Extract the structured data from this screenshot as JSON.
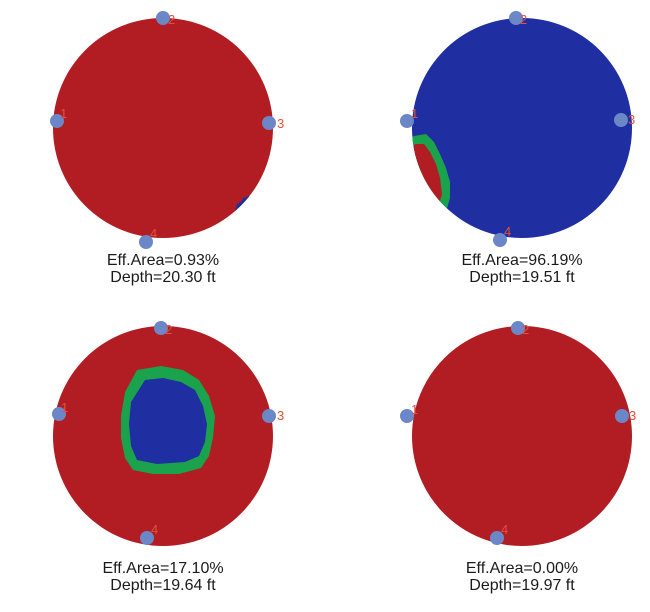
{
  "colors": {
    "high": "#b11d23",
    "low": "#1f2ea0",
    "transition": "#1aa24c",
    "sensor_fill": "#6b87c8",
    "sensor_label": "#e0523c",
    "caption_text": "#1a1a1a"
  },
  "panels": [
    {
      "eff_area": "Eff.Area=0.93%",
      "depth": "Depth=20.30 ft",
      "base": "high",
      "sensor_labels": {
        "top": "2",
        "left": "1",
        "right": "3",
        "bottom": "4"
      }
    },
    {
      "eff_area": "Eff.Area=96.19%",
      "depth": "Depth=19.51 ft",
      "base": "low",
      "sensor_labels": {
        "top": "2",
        "left": "1",
        "right": "3",
        "bottom": "4"
      }
    },
    {
      "eff_area": "Eff.Area=17.10%",
      "depth": "Depth=19.64 ft",
      "base": "high",
      "sensor_labels": {
        "top": "2",
        "left": "1",
        "right": "3",
        "bottom": "4"
      }
    },
    {
      "eff_area": "Eff.Area=0.00%",
      "depth": "Depth=19.97 ft",
      "base": "high",
      "sensor_labels": {
        "top": "2",
        "left": "1",
        "right": "3",
        "bottom": "4"
      }
    }
  ]
}
